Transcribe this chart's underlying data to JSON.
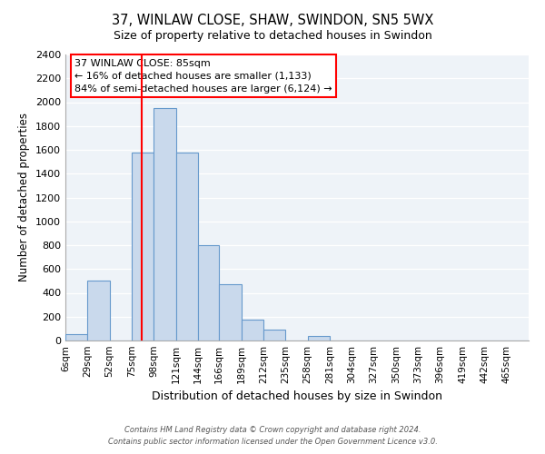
{
  "title": "37, WINLAW CLOSE, SHAW, SWINDON, SN5 5WX",
  "subtitle": "Size of property relative to detached houses in Swindon",
  "xlabel": "Distribution of detached houses by size in Swindon",
  "ylabel": "Number of detached properties",
  "bar_labels": [
    "6sqm",
    "29sqm",
    "52sqm",
    "75sqm",
    "98sqm",
    "121sqm",
    "144sqm",
    "166sqm",
    "189sqm",
    "212sqm",
    "235sqm",
    "258sqm",
    "281sqm",
    "304sqm",
    "327sqm",
    "350sqm",
    "373sqm",
    "396sqm",
    "419sqm",
    "442sqm",
    "465sqm"
  ],
  "bar_values": [
    50,
    500,
    0,
    1580,
    1950,
    1580,
    800,
    470,
    175,
    90,
    0,
    35,
    0,
    0,
    0,
    0,
    0,
    0,
    0,
    0,
    0
  ],
  "bar_color": "#c9d9ec",
  "bar_edgecolor": "#6699cc",
  "ylim": [
    0,
    2400
  ],
  "yticks": [
    0,
    200,
    400,
    600,
    800,
    1000,
    1200,
    1400,
    1600,
    1800,
    2000,
    2200,
    2400
  ],
  "property_line_x": 85,
  "property_line_label": "37 WINLAW CLOSE: 85sqm",
  "annotation_line1": "← 16% of detached houses are smaller (1,133)",
  "annotation_line2": "84% of semi-detached houses are larger (6,124) →",
  "footer1": "Contains HM Land Registry data © Crown copyright and database right 2024.",
  "footer2": "Contains public sector information licensed under the Open Government Licence v3.0.",
  "bin_edges": [
    6,
    29,
    52,
    75,
    98,
    121,
    144,
    166,
    189,
    212,
    235,
    258,
    281,
    304,
    327,
    350,
    373,
    396,
    419,
    442,
    465,
    488
  ],
  "background_color": "#ffffff",
  "plot_bg_color": "#eef3f8",
  "grid_color": "#ffffff"
}
